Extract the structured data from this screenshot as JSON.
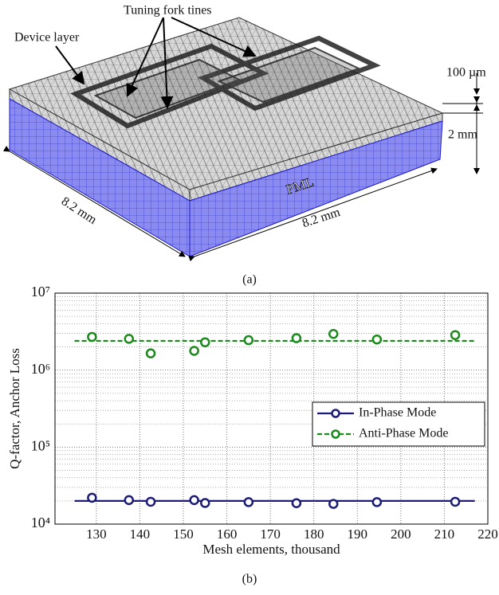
{
  "figure_a": {
    "label_tines": "Tuning fork tines",
    "label_device": "Device layer",
    "label_thickness": "100 µm",
    "label_height": "2 mm",
    "label_pml": "PML",
    "label_width_left": "8.2 mm",
    "label_width_right": "8.2 mm",
    "caption": "(a)"
  },
  "caption_b": "(b)",
  "chart_data": {
    "type": "scatter",
    "xlabel": "Mesh elements, thousand",
    "ylabel": "Q-factor, Anchor Loss",
    "xlim": [
      120.5,
      220
    ],
    "xticks": [
      130,
      140,
      150,
      160,
      170,
      180,
      190,
      200,
      210,
      220
    ],
    "ylim": [
      10000,
      10000000
    ],
    "log_y": true,
    "yticks": [
      {
        "value": 10000,
        "label": "10⁴"
      },
      {
        "value": 100000,
        "label": "10⁵"
      },
      {
        "value": 1000000,
        "label": "10⁶"
      },
      {
        "value": 10000000,
        "label": "10⁷"
      }
    ],
    "grid": true,
    "minor_grid": true,
    "legend": "right",
    "series": [
      {
        "name": "In-Phase Mode",
        "color": "#1c1c78",
        "line_style": "solid",
        "x": [
          129,
          137.5,
          142.5,
          152.5,
          155,
          165,
          176,
          184.5,
          194.5,
          212.5
        ],
        "values": [
          22000,
          20500,
          19500,
          20500,
          18800,
          19300,
          18700,
          18300,
          19300,
          19500
        ],
        "line_x": [
          125,
          217
        ],
        "line_value": 20000
      },
      {
        "name": "Anti-Phase Mode",
        "color": "#1a8a1a",
        "line_style": "dashed",
        "x": [
          129,
          137.5,
          142.5,
          152.5,
          155,
          165,
          176,
          184.5,
          194.5,
          212.5
        ],
        "values": [
          2700000,
          2550000,
          1650000,
          1780000,
          2300000,
          2450000,
          2600000,
          2950000,
          2500000,
          2850000
        ],
        "line_x": [
          125,
          217
        ],
        "line_value": 2400000
      }
    ]
  }
}
